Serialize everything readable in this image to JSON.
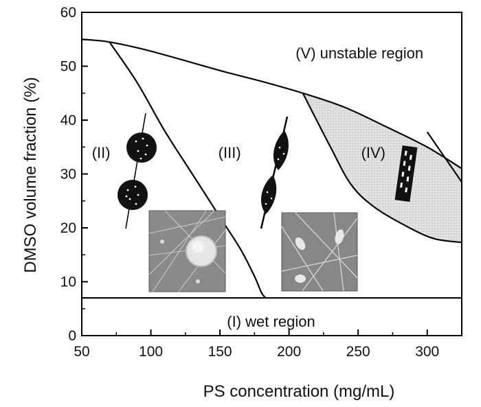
{
  "chart_data": {
    "type": "phase-diagram",
    "xlabel": "PS concentration (mg/mL)",
    "ylabel": "DMSO volume fraction (%)",
    "xlim": [
      50,
      325
    ],
    "ylim": [
      0,
      60
    ],
    "x_ticks": [
      50,
      100,
      150,
      200,
      250,
      300
    ],
    "y_ticks": [
      0,
      10,
      20,
      30,
      40,
      50,
      60
    ],
    "grid": false,
    "boundaries": [
      {
        "points": [
          [
            50,
            55
          ],
          [
            70,
            54.5
          ],
          [
            100,
            52.8
          ],
          [
            150,
            49.2
          ],
          [
            180,
            47.2
          ],
          [
            210,
            45.0
          ],
          [
            240,
            42.4
          ],
          [
            270,
            38.8
          ],
          [
            300,
            35.0
          ],
          [
            325,
            31.0
          ]
        ]
      },
      {
        "points": [
          [
            70,
            54.5
          ],
          [
            90,
            47
          ],
          [
            110,
            38
          ],
          [
            130,
            30
          ],
          [
            150,
            22
          ],
          [
            165,
            16
          ],
          [
            175,
            11
          ],
          [
            180,
            8
          ],
          [
            183,
            7
          ]
        ]
      },
      {
        "points": [
          [
            210,
            45.0
          ],
          [
            230,
            35
          ],
          [
            245,
            28
          ],
          [
            262,
            23.8
          ],
          [
            285,
            20.3
          ],
          [
            305,
            18
          ],
          [
            325,
            17.3
          ]
        ]
      },
      {
        "points": [
          [
            325,
            28.5
          ],
          [
            300,
            37.8
          ]
        ]
      },
      {
        "points": [
          [
            50,
            7
          ],
          [
            325,
            7
          ]
        ]
      }
    ],
    "regions": [
      {
        "label": "(I) wet region",
        "x": 187,
        "y": 2.7
      },
      {
        "label": "(II)",
        "x": 64,
        "y": 34
      },
      {
        "label": "(III)",
        "x": 157,
        "y": 34
      },
      {
        "label": "(IV)",
        "x": 261,
        "y": 34
      },
      {
        "label": "(V) unstable region",
        "x": 251,
        "y": 52.5
      }
    ],
    "shaded_region": "IV",
    "colors": {
      "line": "#000000",
      "shade": "#d9d9d9",
      "inset_bg": "#8a8a8a"
    }
  }
}
